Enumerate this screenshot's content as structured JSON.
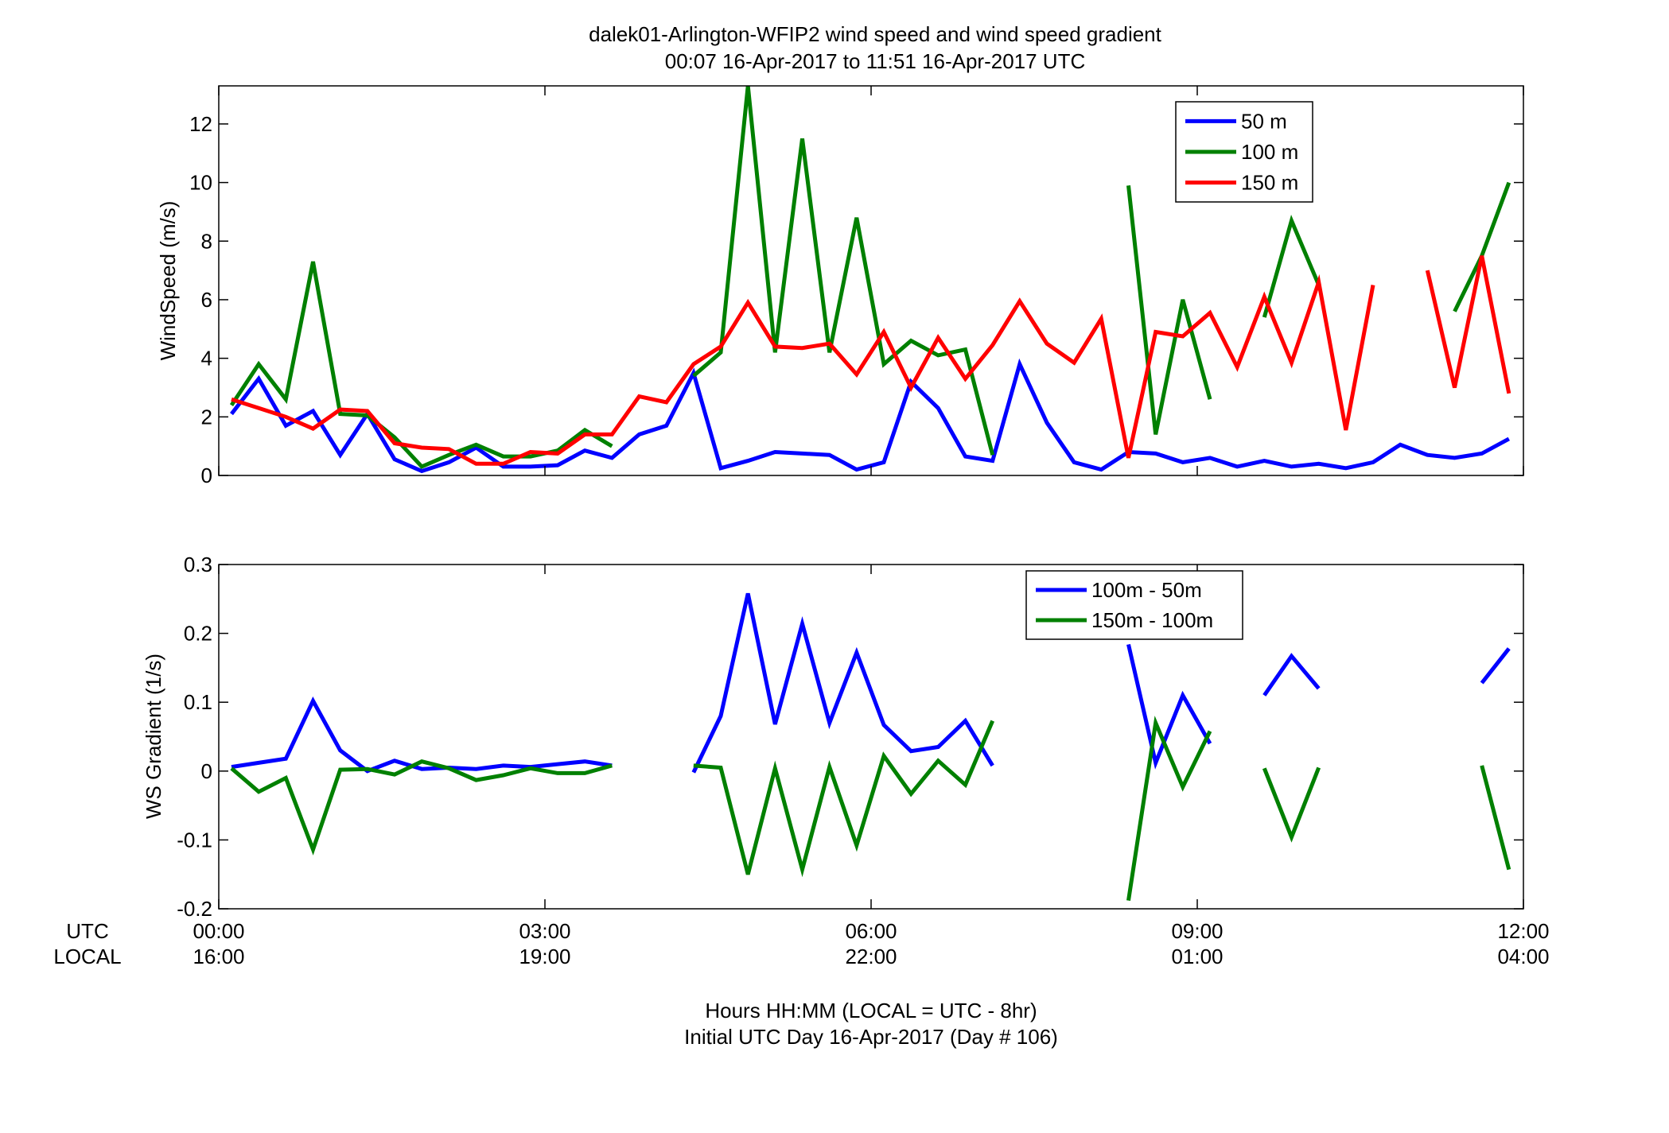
{
  "title_line1": "dalek01-Arlington-WFIP2  wind speed and wind speed gradient",
  "title_line2": "00:07 16-Apr-2017 to 11:51 16-Apr-2017  UTC",
  "xlabel_line1": "Hours HH:MM  (LOCAL = UTC - 8hr)",
  "xlabel_line2": "Initial UTC Day 16-Apr-2017 (Day # 106)",
  "row_label_utc": "UTC",
  "row_label_local": "LOCAL",
  "chart_data": [
    {
      "type": "line",
      "ylabel": "WindSpeed (m/s)",
      "xlim": [
        0,
        12
      ],
      "ylim": [
        0,
        13.3
      ],
      "yticks": [
        0,
        2,
        4,
        6,
        8,
        10,
        12
      ],
      "legend_position": "top-right",
      "series": [
        {
          "name": "50 m",
          "color": "#0000ff",
          "points": [
            [
              0.117,
              2.1
            ],
            [
              0.367,
              3.3
            ],
            [
              0.617,
              1.7
            ],
            [
              0.867,
              2.2
            ],
            [
              1.117,
              0.7
            ],
            [
              1.367,
              2.1
            ],
            [
              1.617,
              0.55
            ],
            [
              1.867,
              0.15
            ],
            [
              2.117,
              0.45
            ],
            [
              2.367,
              0.95
            ],
            [
              2.617,
              0.3
            ],
            [
              2.867,
              0.3
            ],
            [
              3.117,
              0.35
            ],
            [
              3.367,
              0.85
            ],
            [
              3.617,
              0.6
            ],
            [
              3.867,
              1.4
            ],
            [
              4.117,
              1.7
            ],
            [
              4.367,
              3.5
            ],
            [
              4.617,
              0.25
            ],
            [
              4.867,
              0.5
            ],
            [
              5.117,
              0.8
            ],
            [
              5.367,
              0.75
            ],
            [
              5.617,
              0.7
            ],
            [
              5.867,
              0.2
            ],
            [
              6.117,
              0.45
            ],
            [
              6.367,
              3.2
            ],
            [
              6.617,
              2.3
            ],
            [
              6.867,
              0.65
            ],
            [
              7.117,
              0.5
            ],
            [
              7.367,
              3.8
            ],
            [
              7.617,
              1.8
            ],
            [
              7.867,
              0.45
            ],
            [
              8.117,
              0.2
            ],
            [
              8.367,
              0.8
            ],
            [
              8.617,
              0.75
            ],
            [
              8.867,
              0.45
            ],
            [
              9.117,
              0.6
            ],
            [
              9.367,
              0.3
            ],
            [
              9.617,
              0.5
            ],
            [
              9.867,
              0.3
            ],
            [
              10.117,
              0.4
            ],
            [
              10.367,
              0.25
            ],
            [
              10.617,
              0.45
            ],
            [
              10.867,
              1.05
            ],
            [
              11.117,
              0.7
            ],
            [
              11.367,
              0.6
            ],
            [
              11.617,
              0.75
            ],
            [
              11.867,
              1.25
            ]
          ]
        },
        {
          "name": "100 m",
          "color": "#008000",
          "points": [
            [
              0.117,
              2.4
            ],
            [
              0.367,
              3.8
            ],
            [
              0.617,
              2.6
            ],
            [
              0.867,
              7.3
            ],
            [
              1.117,
              2.1
            ],
            [
              1.367,
              2.05
            ],
            [
              1.617,
              1.3
            ],
            [
              1.867,
              0.3
            ],
            [
              2.117,
              0.7
            ],
            [
              2.367,
              1.05
            ],
            [
              2.617,
              0.65
            ],
            [
              2.867,
              0.65
            ],
            [
              3.117,
              0.85
            ],
            [
              3.367,
              1.55
            ],
            [
              3.617,
              1.0
            ],
            null,
            [
              4.367,
              3.4
            ],
            [
              4.617,
              4.2
            ],
            [
              4.867,
              13.3
            ],
            [
              5.117,
              4.2
            ],
            [
              5.367,
              11.5
            ],
            [
              5.617,
              4.2
            ],
            [
              5.867,
              8.8
            ],
            [
              6.117,
              3.8
            ],
            [
              6.367,
              4.6
            ],
            [
              6.617,
              4.1
            ],
            [
              6.867,
              4.3
            ],
            [
              7.117,
              0.7
            ],
            null,
            [
              8.367,
              9.9
            ],
            [
              8.617,
              1.4
            ],
            [
              8.867,
              6.0
            ],
            [
              9.117,
              2.6
            ],
            null,
            [
              9.617,
              5.4
            ],
            [
              9.867,
              8.7
            ],
            [
              10.117,
              6.5
            ],
            null,
            [
              11.367,
              5.6
            ],
            [
              11.617,
              7.5
            ],
            [
              11.867,
              10.0
            ]
          ]
        },
        {
          "name": "150 m",
          "color": "#ff0000",
          "points": [
            [
              0.117,
              2.6
            ],
            [
              0.367,
              2.3
            ],
            [
              0.617,
              2.0
            ],
            [
              0.867,
              1.6
            ],
            [
              1.117,
              2.25
            ],
            [
              1.367,
              2.2
            ],
            [
              1.617,
              1.1
            ],
            [
              1.867,
              0.95
            ],
            [
              2.117,
              0.9
            ],
            [
              2.367,
              0.4
            ],
            [
              2.617,
              0.4
            ],
            [
              2.867,
              0.8
            ],
            [
              3.117,
              0.75
            ],
            [
              3.367,
              1.4
            ],
            [
              3.617,
              1.4
            ],
            [
              3.867,
              2.7
            ],
            [
              4.117,
              2.5
            ],
            [
              4.367,
              3.8
            ],
            [
              4.617,
              4.4
            ],
            [
              4.867,
              5.9
            ],
            [
              5.117,
              4.4
            ],
            [
              5.367,
              4.35
            ],
            [
              5.617,
              4.5
            ],
            [
              5.867,
              3.45
            ],
            [
              6.117,
              4.9
            ],
            [
              6.367,
              3.0
            ],
            [
              6.617,
              4.7
            ],
            [
              6.867,
              3.3
            ],
            [
              7.117,
              4.45
            ],
            [
              7.367,
              5.95
            ],
            [
              7.617,
              4.5
            ],
            [
              7.867,
              3.85
            ],
            [
              8.117,
              5.35
            ],
            [
              8.367,
              0.6
            ],
            [
              8.617,
              4.9
            ],
            [
              8.867,
              4.75
            ],
            [
              9.117,
              5.55
            ],
            [
              9.367,
              3.7
            ],
            [
              9.617,
              6.1
            ],
            [
              9.867,
              3.85
            ],
            [
              10.117,
              6.6
            ],
            [
              10.367,
              1.55
            ],
            [
              10.617,
              6.5
            ],
            null,
            [
              11.117,
              7.0
            ],
            [
              11.367,
              3.0
            ],
            [
              11.617,
              7.5
            ],
            [
              11.867,
              2.8
            ]
          ]
        }
      ]
    },
    {
      "type": "line",
      "ylabel": "WS Gradient (1/s)",
      "xlim": [
        0,
        12
      ],
      "ylim": [
        -0.2,
        0.3
      ],
      "yticks": [
        -0.2,
        -0.1,
        0,
        0.1,
        0.2,
        0.3
      ],
      "ytick_labels": [
        "-0.2",
        "-0.1",
        "0",
        "0.1",
        "0.2",
        "0.3"
      ],
      "xticks": [
        0,
        3,
        6,
        9,
        12
      ],
      "xtick_labels_utc": [
        "00:00",
        "03:00",
        "06:00",
        "09:00",
        "12:00"
      ],
      "xtick_labels_local": [
        "16:00",
        "19:00",
        "22:00",
        "01:00",
        "04:00"
      ],
      "legend_position": "top-right",
      "series": [
        {
          "name": "100m - 50m",
          "color": "#0000ff",
          "points": [
            [
              0.117,
              0.006
            ],
            [
              0.367,
              0.012
            ],
            [
              0.617,
              0.018
            ],
            [
              0.867,
              0.102
            ],
            [
              1.117,
              0.03
            ],
            [
              1.367,
              0.0
            ],
            [
              1.617,
              0.015
            ],
            [
              1.867,
              0.003
            ],
            [
              2.117,
              0.005
            ],
            [
              2.367,
              0.003
            ],
            [
              2.617,
              0.008
            ],
            [
              2.867,
              0.006
            ],
            [
              3.117,
              0.01
            ],
            [
              3.367,
              0.014
            ],
            [
              3.617,
              0.008
            ],
            null,
            [
              4.367,
              -0.002
            ],
            [
              4.617,
              0.08
            ],
            [
              4.867,
              0.258
            ],
            [
              5.117,
              0.068
            ],
            [
              5.367,
              0.214
            ],
            [
              5.617,
              0.07
            ],
            [
              5.867,
              0.172
            ],
            [
              6.117,
              0.067
            ],
            [
              6.367,
              0.029
            ],
            [
              6.617,
              0.035
            ],
            [
              6.867,
              0.073
            ],
            [
              7.117,
              0.008
            ],
            null,
            [
              8.367,
              0.184
            ],
            [
              8.617,
              0.012
            ],
            [
              8.867,
              0.11
            ],
            [
              9.117,
              0.04
            ],
            null,
            [
              9.617,
              0.11
            ],
            [
              9.867,
              0.167
            ],
            [
              10.117,
              0.12
            ],
            null,
            [
              11.617,
              0.128
            ],
            [
              11.867,
              0.178
            ]
          ]
        },
        {
          "name": "150m - 100m",
          "color": "#008000",
          "points": [
            [
              0.117,
              0.004
            ],
            [
              0.367,
              -0.03
            ],
            [
              0.617,
              -0.01
            ],
            [
              0.867,
              -0.114
            ],
            [
              1.117,
              0.002
            ],
            [
              1.367,
              0.003
            ],
            [
              1.617,
              -0.005
            ],
            [
              1.867,
              0.014
            ],
            [
              2.117,
              0.004
            ],
            [
              2.367,
              -0.013
            ],
            [
              2.617,
              -0.006
            ],
            [
              2.867,
              0.004
            ],
            [
              3.117,
              -0.003
            ],
            [
              3.367,
              -0.003
            ],
            [
              3.617,
              0.008
            ],
            null,
            [
              4.367,
              0.008
            ],
            [
              4.617,
              0.005
            ],
            [
              4.867,
              -0.15
            ],
            [
              5.117,
              0.004
            ],
            [
              5.367,
              -0.143
            ],
            [
              5.617,
              0.006
            ],
            [
              5.867,
              -0.108
            ],
            [
              6.117,
              0.022
            ],
            [
              6.367,
              -0.033
            ],
            [
              6.617,
              0.015
            ],
            [
              6.867,
              -0.02
            ],
            [
              7.117,
              0.073
            ],
            null,
            [
              8.367,
              -0.188
            ],
            [
              8.617,
              0.07
            ],
            [
              8.867,
              -0.023
            ],
            [
              9.117,
              0.058
            ],
            null,
            [
              9.617,
              0.004
            ],
            [
              9.867,
              -0.096
            ],
            [
              10.117,
              0.005
            ],
            null,
            [
              11.617,
              0.008
            ],
            [
              11.867,
              -0.143
            ]
          ]
        }
      ]
    }
  ]
}
